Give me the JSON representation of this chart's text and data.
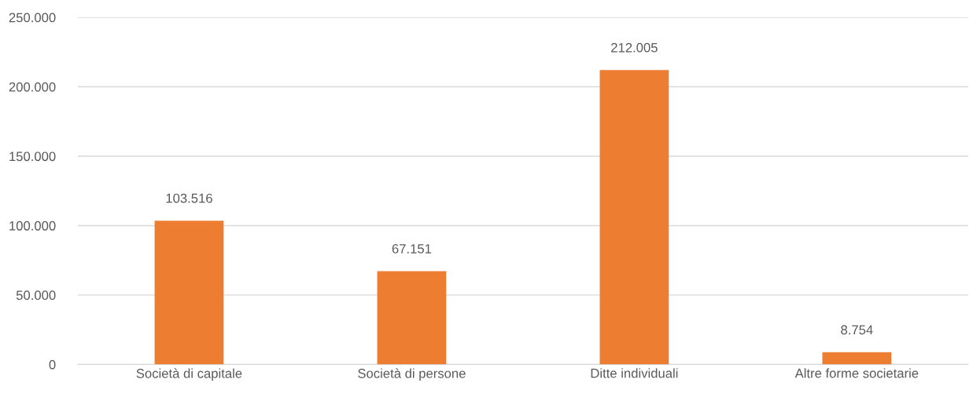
{
  "chart_data": {
    "type": "bar",
    "categories": [
      "Società di capitale",
      "Società di persone",
      "Ditte individuali",
      "Altre forme societarie"
    ],
    "values": [
      103516,
      67151,
      212005,
      8754
    ],
    "value_labels": [
      "103.516",
      "67.151",
      "212.005",
      "8.754"
    ],
    "color": "#ed7d31",
    "ylim": [
      0,
      250000
    ],
    "yticks": [
      0,
      {
        "value": 50000,
        "label": "50.000"
      },
      {
        "value": 100000,
        "label": "100.000"
      },
      {
        "value": 150000,
        "label": "150.000"
      },
      {
        "value": 200000,
        "label": "200.000"
      },
      {
        "value": 250000,
        "label": "250.000"
      }
    ],
    "grid": "y"
  }
}
